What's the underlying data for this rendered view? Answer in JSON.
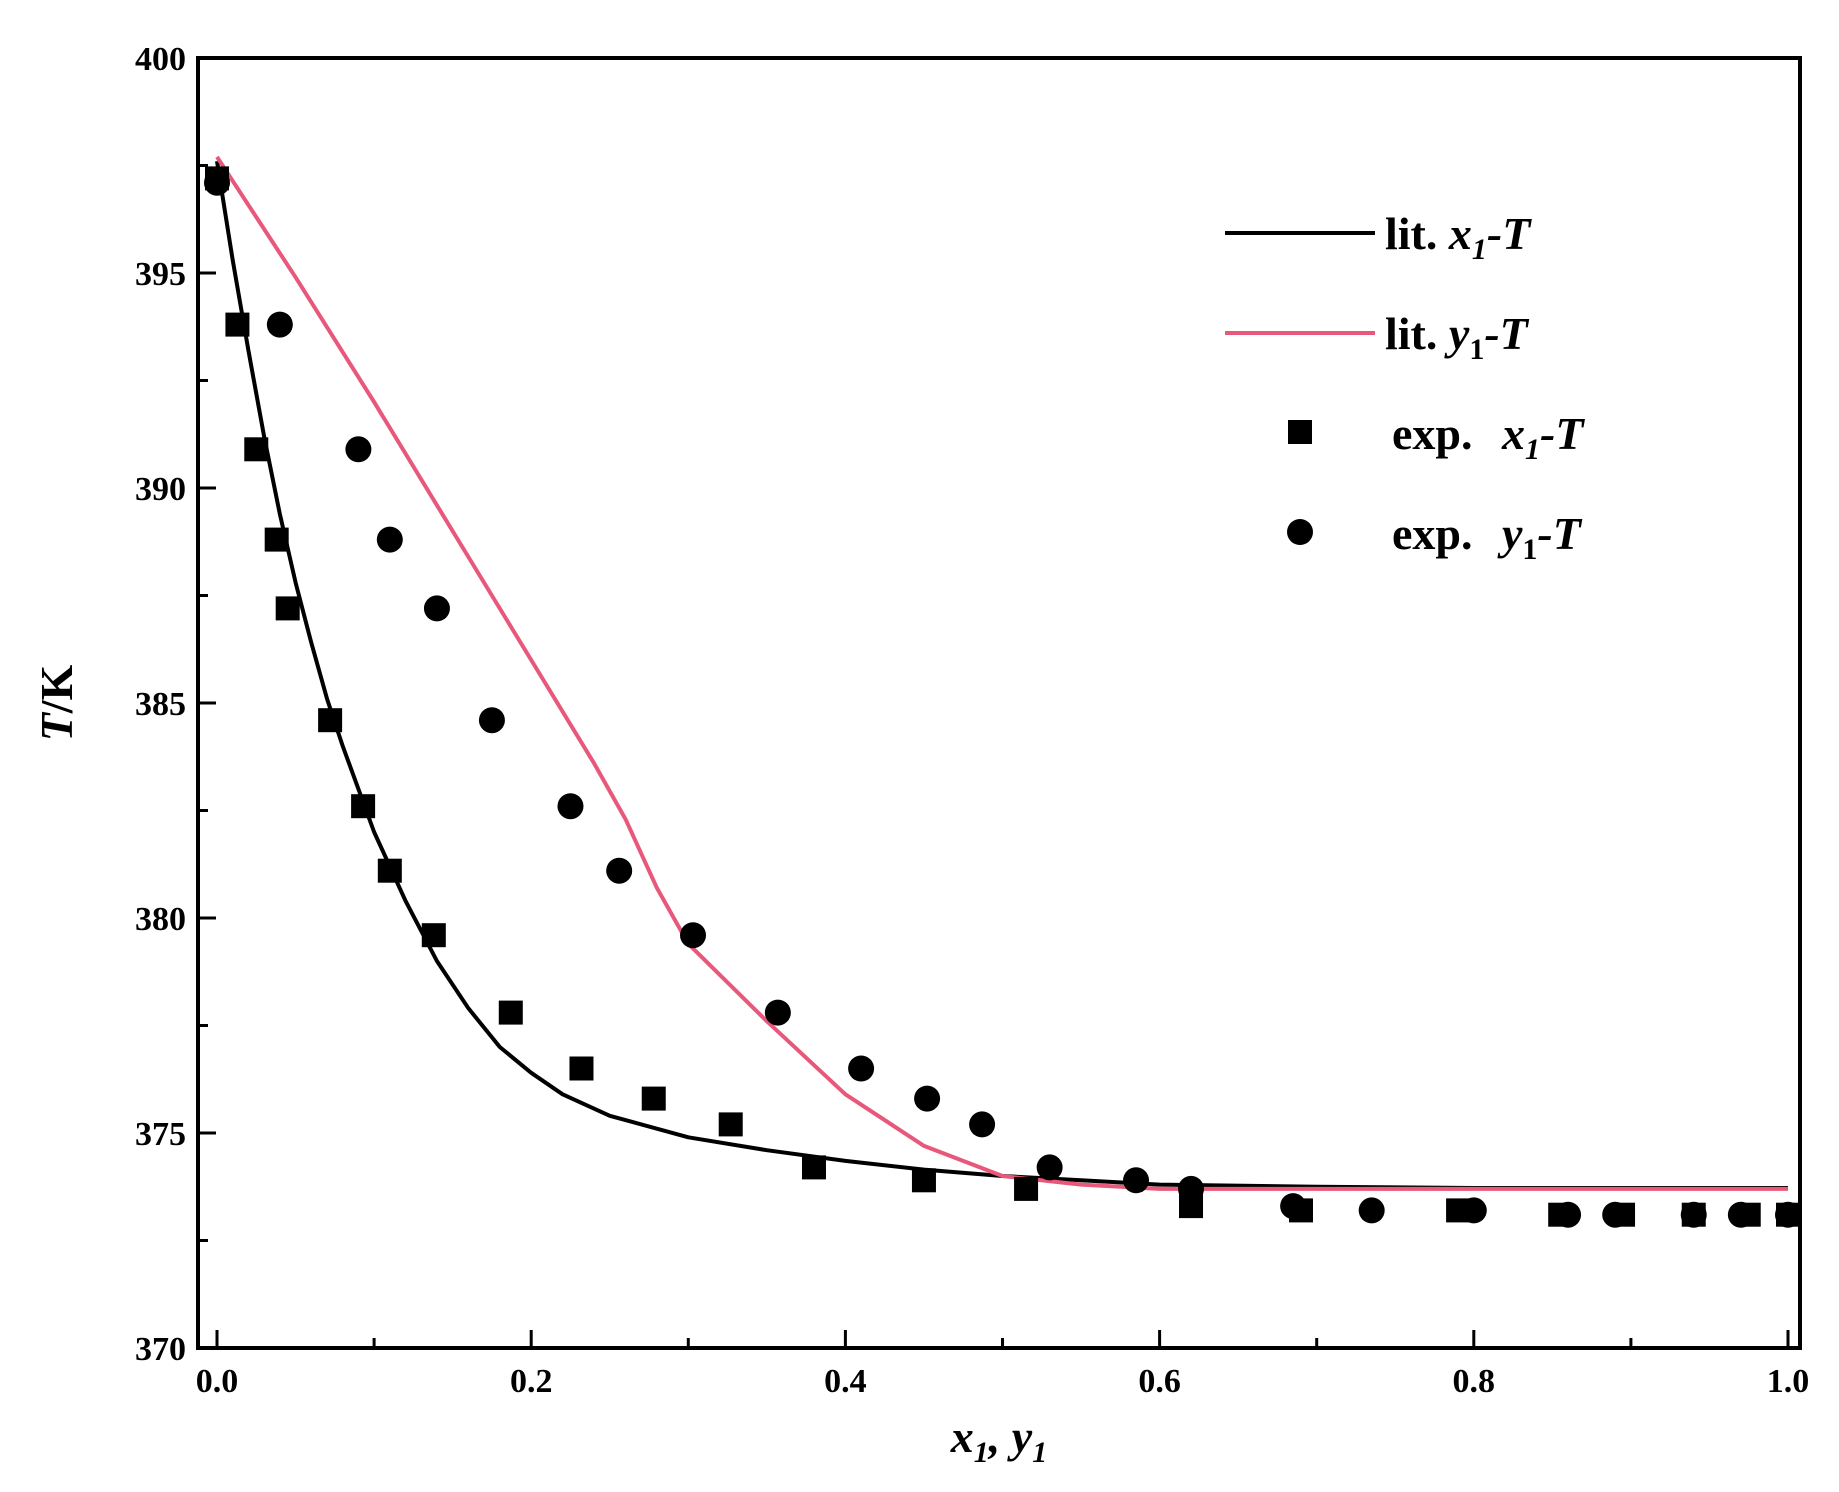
{
  "chart_data": {
    "type": "line",
    "xlabel": {
      "v1": "x",
      "s1": "1",
      "sep": ", ",
      "v2": "y",
      "s2": "1"
    },
    "ylabel": {
      "v": "T",
      "rest": "/K"
    },
    "xlim": [
      0.0,
      1.0
    ],
    "ylim": [
      370,
      400
    ],
    "xticks": [
      0.0,
      0.2,
      0.4,
      0.6,
      0.8,
      1.0
    ],
    "xtick_labels": [
      "0.0",
      "0.2",
      "0.4",
      "0.6",
      "0.8",
      "1.0"
    ],
    "yticks": [
      370,
      375,
      380,
      385,
      390,
      395,
      400
    ],
    "ytick_labels": [
      "370",
      "375",
      "380",
      "385",
      "390",
      "395",
      "400"
    ],
    "legend_position": "top-right",
    "colors": {
      "lit_x": "#000000",
      "lit_y": "#e8587a",
      "exp": "#000000"
    },
    "series": [
      {
        "name": "lit. x1-T",
        "label": {
          "pre": "lit. ",
          "v": "x",
          "s": "1",
          "post": "-T"
        },
        "kind": "line",
        "x": [
          0.0,
          0.01,
          0.02,
          0.03,
          0.04,
          0.05,
          0.06,
          0.07,
          0.08,
          0.1,
          0.12,
          0.14,
          0.16,
          0.18,
          0.2,
          0.22,
          0.25,
          0.3,
          0.35,
          0.4,
          0.45,
          0.5,
          0.55,
          0.6,
          0.7,
          0.8,
          0.9,
          1.0
        ],
        "y": [
          397.6,
          395.3,
          393.2,
          391.2,
          389.4,
          387.8,
          386.4,
          385.1,
          384.0,
          382.0,
          380.4,
          379.0,
          377.9,
          377.0,
          376.4,
          375.9,
          375.4,
          374.9,
          374.6,
          374.35,
          374.15,
          374.0,
          373.9,
          373.8,
          373.75,
          373.72,
          373.72,
          373.72
        ]
      },
      {
        "name": "lit. y1-T",
        "label": {
          "pre": "lit. ",
          "v": "y",
          "s": "1",
          "post": "-T"
        },
        "kind": "line",
        "x": [
          0.0,
          0.05,
          0.1,
          0.15,
          0.2,
          0.24,
          0.26,
          0.28,
          0.3,
          0.35,
          0.4,
          0.45,
          0.5,
          0.55,
          0.6,
          0.7,
          0.8,
          0.9,
          1.0
        ],
        "y": [
          397.7,
          394.9,
          392.0,
          389.0,
          386.0,
          383.6,
          382.3,
          380.7,
          379.4,
          377.6,
          375.9,
          374.7,
          374.0,
          373.8,
          373.7,
          373.7,
          373.7,
          373.7,
          373.7
        ]
      },
      {
        "name": "exp. x1-T",
        "label": {
          "pre": "exp. ",
          "v": "x",
          "s": "1",
          "post": "-T"
        },
        "kind": "scatter",
        "marker": "square",
        "x": [
          0.0,
          0.013,
          0.025,
          0.038,
          0.045,
          0.072,
          0.093,
          0.11,
          0.138,
          0.187,
          0.232,
          0.278,
          0.327,
          0.38,
          0.45,
          0.515,
          0.62,
          0.69,
          0.79,
          0.855,
          0.895,
          0.94,
          0.975,
          1.0
        ],
        "y": [
          397.2,
          393.8,
          390.9,
          388.8,
          387.2,
          384.6,
          382.6,
          381.1,
          379.6,
          377.8,
          376.5,
          375.8,
          375.2,
          374.2,
          373.9,
          373.7,
          373.3,
          373.2,
          373.2,
          373.1,
          373.1,
          373.1,
          373.1,
          373.1
        ]
      },
      {
        "name": "exp. y1-T",
        "label": {
          "pre": "exp. ",
          "v": "y",
          "s": "1",
          "post": "-T"
        },
        "kind": "scatter",
        "marker": "circle",
        "x": [
          0.0,
          0.04,
          0.09,
          0.11,
          0.14,
          0.175,
          0.225,
          0.256,
          0.303,
          0.357,
          0.41,
          0.452,
          0.487,
          0.53,
          0.585,
          0.62,
          0.685,
          0.735,
          0.8,
          0.86,
          0.89,
          0.94,
          0.97,
          1.0
        ],
        "y": [
          397.1,
          393.8,
          390.9,
          388.8,
          387.2,
          384.6,
          382.6,
          381.1,
          379.6,
          377.8,
          376.5,
          375.8,
          375.2,
          374.2,
          373.9,
          373.7,
          373.3,
          373.2,
          373.2,
          373.1,
          373.1,
          373.1,
          373.1,
          373.1
        ]
      }
    ]
  }
}
